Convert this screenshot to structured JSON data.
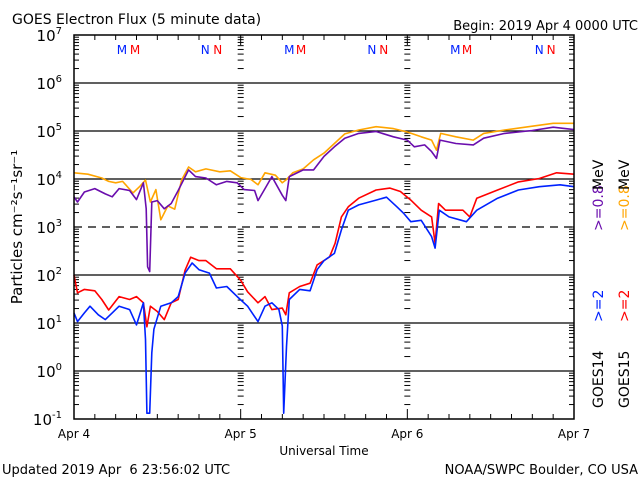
{
  "chart_data": {
    "type": "line",
    "title": "GOES Electron Flux (5 minute data)",
    "begin_label": "Begin: 2019 Apr 4 0000 UTC",
    "xlabel": "Universal Time",
    "ylabel": "Particles cm⁻²s⁻¹sr⁻¹",
    "x_unit": "hours since 2019 Apr 4 0000 UTC",
    "xlim": [
      0,
      72
    ],
    "x_ticks": [
      {
        "h": 0,
        "label": "Apr 4"
      },
      {
        "h": 24,
        "label": "Apr 5"
      },
      {
        "h": 48,
        "label": "Apr 6"
      },
      {
        "h": 72,
        "label": "Apr 7"
      }
    ],
    "y_scale": "log",
    "ylim_log10": [
      -1,
      7
    ],
    "y_ticks": [
      {
        "exp": 7,
        "base": "10",
        "sup": "7"
      },
      {
        "exp": 6,
        "base": "10",
        "sup": "6"
      },
      {
        "exp": 5,
        "base": "10",
        "sup": "5"
      },
      {
        "exp": 4,
        "base": "10",
        "sup": "4"
      },
      {
        "exp": 3,
        "base": "10",
        "sup": "3"
      },
      {
        "exp": 2,
        "base": "10",
        "sup": "2"
      },
      {
        "exp": 1,
        "base": "10",
        "sup": "1"
      },
      {
        "exp": 0,
        "base": "10",
        "sup": "0"
      },
      {
        "exp": -1,
        "base": "10",
        "sup": "-1"
      }
    ],
    "dashed_threshold_log10": 3,
    "grid": true,
    "legend": {
      "placement": "right",
      "columns": [
        {
          "satellite": "GOES14",
          "items": [
            {
              "text": ">=2",
              "color": "#0022ff"
            },
            {
              "text": ">=0.8",
              "color": "#6a0dad"
            }
          ],
          "unit": "MeV"
        },
        {
          "satellite": "GOES15",
          "items": [
            {
              "text": ">=2",
              "color": "#ff0000"
            },
            {
              "text": ">=0.8",
              "color": "#ffa500"
            }
          ],
          "unit": "MeV"
        }
      ]
    },
    "markers": [
      {
        "h": 6.9,
        "label": "M",
        "color": "#0022ff"
      },
      {
        "h": 8.8,
        "label": "M",
        "color": "#ff0000"
      },
      {
        "h": 18.9,
        "label": "N",
        "color": "#0022ff"
      },
      {
        "h": 20.7,
        "label": "N",
        "color": "#ff0000"
      },
      {
        "h": 31.0,
        "label": "M",
        "color": "#0022ff"
      },
      {
        "h": 32.7,
        "label": "M",
        "color": "#ff0000"
      },
      {
        "h": 42.9,
        "label": "N",
        "color": "#0022ff"
      },
      {
        "h": 44.6,
        "label": "N",
        "color": "#ff0000"
      },
      {
        "h": 54.9,
        "label": "M",
        "color": "#0022ff"
      },
      {
        "h": 56.6,
        "label": "M",
        "color": "#ff0000"
      },
      {
        "h": 67.0,
        "label": "N",
        "color": "#0022ff"
      },
      {
        "h": 68.7,
        "label": "N",
        "color": "#ff0000"
      }
    ],
    "series": [
      {
        "name": "GOES15 >=0.8 MeV",
        "color": "#ffa500",
        "h": [
          0,
          2,
          4,
          5,
          6,
          7,
          8.5,
          9.5,
          10.3,
          11,
          11.8,
          12.5,
          13.5,
          14.5,
          15.5,
          16.5,
          17.5,
          19,
          21,
          22.5,
          24,
          25.5,
          26.5,
          27.5,
          29,
          30,
          30.6,
          31.5,
          33,
          34.5,
          36,
          37.5,
          39,
          41,
          43.5,
          46,
          48,
          50,
          51.5,
          52.2,
          52.8,
          55,
          57.5,
          59,
          62,
          66,
          69,
          72
        ],
        "log10": [
          4.13,
          4.1,
          4.02,
          3.95,
          3.92,
          3.95,
          3.71,
          3.85,
          3.98,
          3.52,
          3.78,
          3.15,
          3.44,
          3.37,
          3.98,
          4.25,
          4.15,
          4.21,
          4.15,
          4.17,
          4.03,
          3.99,
          3.88,
          4.13,
          4.08,
          3.92,
          3.99,
          4.13,
          4.21,
          4.4,
          4.54,
          4.74,
          4.94,
          5.02,
          5.09,
          5.05,
          4.98,
          4.88,
          4.81,
          4.6,
          4.95,
          4.88,
          4.81,
          4.95,
          5.02,
          5.1,
          5.16,
          5.16
        ]
      },
      {
        "name": "GOES14 >=0.8 MeV",
        "color": "#6a0dad",
        "h": [
          0,
          0.5,
          1.5,
          3,
          4.5,
          5.5,
          6.5,
          8,
          9,
          10,
          10.4,
          10.6,
          10.9,
          11.2,
          12,
          13,
          14,
          15,
          16.5,
          17.5,
          19,
          20.5,
          22,
          23.5,
          24.5,
          26,
          26.5,
          27.5,
          28.5,
          30,
          30.5,
          31,
          33,
          34.5,
          36,
          37.5,
          39,
          41,
          43.5,
          46,
          48,
          49,
          50.5,
          51.5,
          52.2,
          52.7,
          55,
          57.5,
          59,
          62,
          66,
          69,
          72
        ],
        "log10": [
          3.63,
          3.52,
          3.73,
          3.8,
          3.69,
          3.63,
          3.8,
          3.76,
          3.57,
          3.92,
          3.38,
          2.17,
          2.07,
          3.52,
          3.55,
          3.38,
          3.49,
          3.76,
          4.19,
          4.05,
          4.02,
          3.88,
          3.95,
          3.92,
          3.78,
          3.76,
          3.55,
          3.8,
          4.05,
          3.66,
          3.55,
          4.05,
          4.19,
          4.19,
          4.47,
          4.67,
          4.85,
          4.95,
          4.99,
          4.88,
          4.81,
          4.67,
          4.71,
          4.57,
          4.43,
          4.81,
          4.74,
          4.71,
          4.85,
          4.95,
          5.01,
          5.08,
          5.03
        ]
      },
      {
        "name": "GOES15 >=2 MeV",
        "color": "#ff0000",
        "h": [
          0,
          0.5,
          1.5,
          3,
          4,
          5,
          6.5,
          8,
          9,
          10,
          10.5,
          11,
          12,
          13,
          14,
          15,
          16,
          16.8,
          18,
          19,
          20.5,
          22.5,
          24,
          25,
          26.5,
          27.5,
          28.5,
          30,
          30.5,
          31,
          32.5,
          34,
          35,
          36,
          36.8,
          37.6,
          38.5,
          39.5,
          41,
          43.5,
          45.5,
          47,
          48.5,
          50,
          51.5,
          52,
          52.5,
          53.5,
          56,
          57,
          58,
          61,
          64,
          67,
          69.5,
          72
        ],
        "log10": [
          2.0,
          1.63,
          1.7,
          1.67,
          1.49,
          1.27,
          1.55,
          1.49,
          1.55,
          1.42,
          0.92,
          1.35,
          1.24,
          1.07,
          1.42,
          1.49,
          2.1,
          2.37,
          2.3,
          2.3,
          2.13,
          2.13,
          1.89,
          1.65,
          1.42,
          1.55,
          1.28,
          1.31,
          1.17,
          1.63,
          1.76,
          1.83,
          2.21,
          2.3,
          2.38,
          2.66,
          3.21,
          3.42,
          3.6,
          3.77,
          3.81,
          3.74,
          3.56,
          3.35,
          3.21,
          2.66,
          3.49,
          3.35,
          3.35,
          3.21,
          3.6,
          3.77,
          3.94,
          4.01,
          4.13,
          4.1
        ]
      },
      {
        "name": "GOES14 >=2 MeV",
        "color": "#0022ff",
        "h": [
          0,
          0.5,
          1.5,
          2.3,
          3.5,
          4.5,
          5.5,
          6.5,
          8,
          9,
          10,
          10.3,
          10.5,
          10.9,
          11.2,
          11.5,
          12.5,
          14,
          15,
          16,
          17,
          18,
          19.5,
          20.5,
          22,
          23.5,
          25,
          26.5,
          27.5,
          28.5,
          29.5,
          30,
          30.2,
          30.6,
          31,
          32.5,
          34,
          35,
          36,
          37.5,
          38.5,
          39.5,
          41,
          43.5,
          45,
          46.5,
          47.5,
          48.5,
          50,
          51.5,
          52,
          52.6,
          54,
          56.5,
          58,
          61,
          64,
          67,
          70,
          72
        ],
        "log10": [
          1.21,
          1.03,
          1.21,
          1.35,
          1.17,
          1.07,
          1.21,
          1.35,
          1.28,
          0.96,
          1.42,
          0.66,
          -0.88,
          -0.88,
          0.38,
          0.87,
          1.35,
          1.42,
          1.55,
          2.04,
          2.25,
          2.11,
          2.04,
          1.73,
          1.76,
          1.55,
          1.35,
          1.03,
          1.35,
          1.42,
          1.28,
          0.94,
          -0.88,
          0.51,
          1.49,
          1.7,
          1.67,
          2.11,
          2.3,
          2.45,
          2.94,
          3.35,
          3.46,
          3.56,
          3.62,
          3.42,
          3.28,
          3.11,
          3.14,
          2.8,
          2.56,
          3.35,
          3.21,
          3.11,
          3.35,
          3.6,
          3.77,
          3.84,
          3.88,
          3.84
        ]
      }
    ]
  },
  "footer": {
    "updated": "Updated 2019 Apr  6 23:56:02 UTC",
    "credit": "NOAA/SWPC Boulder, CO USA"
  }
}
